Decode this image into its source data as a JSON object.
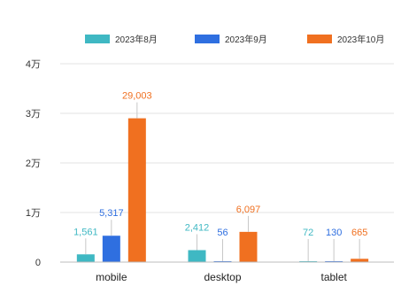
{
  "chart_data": {
    "type": "bar",
    "title": "",
    "xlabel": "",
    "ylabel": "",
    "categories": [
      "mobile",
      "desktop",
      "tablet"
    ],
    "series": [
      {
        "name": "2023年8月",
        "color": "#3fb8c3",
        "values": [
          1561,
          2412,
          72
        ],
        "labels": [
          "1,561",
          "2,412",
          "72"
        ]
      },
      {
        "name": "2023年9月",
        "color": "#2f6fe0",
        "values": [
          5317,
          56,
          130
        ],
        "labels": [
          "5,317",
          "56",
          "130"
        ]
      },
      {
        "name": "2023年10月",
        "color": "#f07020",
        "values": [
          29003,
          6097,
          665
        ],
        "labels": [
          "29,003",
          "6,097",
          "665"
        ]
      }
    ],
    "ylim": [
      0,
      40000
    ],
    "yticks": [
      {
        "value": 0,
        "label": "0"
      },
      {
        "value": 10000,
        "label": "1万"
      },
      {
        "value": 20000,
        "label": "2万"
      },
      {
        "value": 30000,
        "label": "3万"
      },
      {
        "value": 40000,
        "label": "4万"
      }
    ],
    "grid": true,
    "legend_position": "top"
  }
}
